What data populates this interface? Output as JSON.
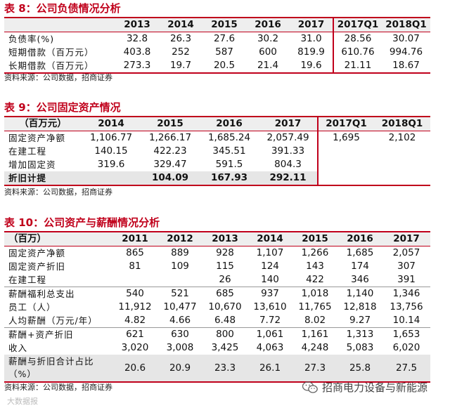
{
  "t8": {
    "title": "表 8：公司负债情况分析",
    "headers": [
      "",
      "2013",
      "2014",
      "2015",
      "2016",
      "2017",
      "2017Q1",
      "2018Q1"
    ],
    "rows": [
      [
        "负债率(%)",
        "32.8",
        "26.3",
        "27.6",
        "30.2",
        "31.0",
        "28.56",
        "30.07"
      ],
      [
        "短期借款（百万元）",
        "403.8",
        "252",
        "587",
        "600",
        "819.9",
        "610.76",
        "994.76"
      ],
      [
        "长期借款（百万元）",
        "273.3",
        "19.7",
        "20.5",
        "21.4",
        "19.6",
        "21.11",
        "18.67"
      ]
    ],
    "source": "资料来源：公司数据，招商证券"
  },
  "t9": {
    "title": "表 9：公司固定资产情况",
    "headers": [
      "（百万元）",
      "2014",
      "2015",
      "2016",
      "2017",
      "2017Q1",
      "2018Q1"
    ],
    "rows": [
      [
        "固定资产净额",
        "1,106.77",
        "1,266.17",
        "1,685.24",
        "2,057.49",
        "1,695",
        "2,102"
      ],
      [
        "在建工程",
        "140.15",
        "422.23",
        "345.51",
        "391.33",
        "",
        ""
      ],
      [
        "增加固定资",
        "319.6",
        "329.47",
        "591.5",
        "804.3",
        "",
        ""
      ],
      [
        "折旧计提",
        "",
        "104.09",
        "167.93",
        "292.11",
        "",
        ""
      ]
    ],
    "source": "资料来源：公司数据，招商证券"
  },
  "t10": {
    "title": "表 10：公司资产与薪酬情况分析",
    "headers": [
      "（百万）",
      "2011",
      "2012",
      "2013",
      "2014",
      "2015",
      "2016",
      "2017"
    ],
    "rows": [
      [
        "固定资产净额",
        "865",
        "889",
        "928",
        "1,107",
        "1,266",
        "1,685",
        "2,057"
      ],
      [
        "固定资产折旧",
        "81",
        "109",
        "115",
        "124",
        "143",
        "174",
        "307"
      ],
      [
        "在建工程",
        "",
        "",
        "26",
        "140",
        "422",
        "346",
        "391"
      ],
      [
        "薪酬福利总支出",
        "540",
        "521",
        "685",
        "937",
        "1,018",
        "1,140",
        "1,346"
      ],
      [
        "员工（人）",
        "11,912",
        "10,477",
        "10,670",
        "13,610",
        "11,765",
        "12,818",
        "13,756"
      ],
      [
        "人均薪酬（万元/年）",
        "4.82",
        "4.66",
        "6.48",
        "7.72",
        "8.02",
        "9.27",
        "10.14"
      ],
      [
        "薪酬+资产折旧",
        "621",
        "630",
        "800",
        "1,061",
        "1,161",
        "1,313",
        "1,653"
      ],
      [
        "收入",
        "3,020",
        "3,008",
        "3,425",
        "4,063",
        "4,248",
        "5,083",
        "6,020"
      ],
      [
        "薪酬与折旧合计占比（%）",
        "20.6",
        "20.9",
        "23.3",
        "26.1",
        "27.3",
        "25.8",
        "27.5"
      ]
    ],
    "source": "资料来源：公司数据，招商证券"
  },
  "watermark": "招商电力设备与新能源",
  "corner_watermark": "大数据报"
}
